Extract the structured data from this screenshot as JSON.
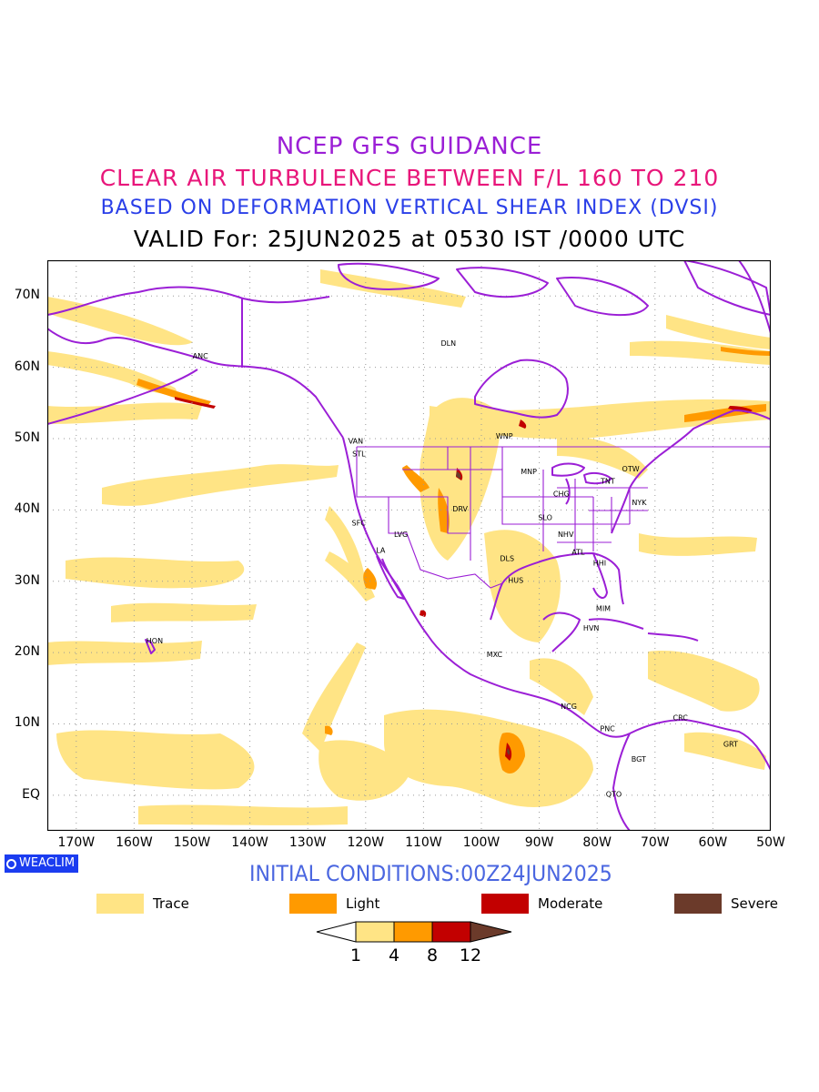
{
  "header": {
    "title": "NCEP GFS GUIDANCE",
    "subtitle": "CLEAR AIR TURBULENCE BETWEEN F/L 160 TO 210",
    "method": "BASED ON DEFORMATION VERTICAL SHEAR INDEX (DVSI)",
    "valid": "VALID For: 25JUN2025 at 0530 IST /0000 UTC"
  },
  "map": {
    "extent": {
      "lon_min": -175,
      "lon_max": -50,
      "lat_min": -5,
      "lat_max": 75
    },
    "x_ticks": [
      "170W",
      "160W",
      "150W",
      "140W",
      "130W",
      "120W",
      "110W",
      "100W",
      "90W",
      "80W",
      "70W",
      "60W",
      "50W"
    ],
    "y_ticks": [
      "70N",
      "60N",
      "50N",
      "40N",
      "30N",
      "20N",
      "10N",
      "EQ"
    ],
    "stations": [
      {
        "code": "ANC",
        "lon": -149.9,
        "lat": 61.2
      },
      {
        "code": "DLN",
        "lon": -107,
        "lat": 63
      },
      {
        "code": "VAN",
        "lon": -123,
        "lat": 49.3
      },
      {
        "code": "STL",
        "lon": -122.3,
        "lat": 47.5
      },
      {
        "code": "WNP",
        "lon": -97.5,
        "lat": 50
      },
      {
        "code": "MNP",
        "lon": -93.2,
        "lat": 45
      },
      {
        "code": "TNT",
        "lon": -79.4,
        "lat": 43.7
      },
      {
        "code": "OTW",
        "lon": -75.7,
        "lat": 45.4
      },
      {
        "code": "CHG",
        "lon": -87.6,
        "lat": 41.9
      },
      {
        "code": "NYK",
        "lon": -74,
        "lat": 40.7
      },
      {
        "code": "DRV",
        "lon": -105,
        "lat": 39.8
      },
      {
        "code": "SFC",
        "lon": -122.4,
        "lat": 37.8
      },
      {
        "code": "LVG",
        "lon": -115.1,
        "lat": 36.2
      },
      {
        "code": "SLO",
        "lon": -90.2,
        "lat": 38.6
      },
      {
        "code": "NHV",
        "lon": -86.8,
        "lat": 36.2
      },
      {
        "code": "LA",
        "lon": -118.2,
        "lat": 34
      },
      {
        "code": "ATL",
        "lon": -84.4,
        "lat": 33.7
      },
      {
        "code": "DLS",
        "lon": -96.8,
        "lat": 32.8
      },
      {
        "code": "HHI",
        "lon": -80.7,
        "lat": 32.2
      },
      {
        "code": "HUS",
        "lon": -95.4,
        "lat": 29.8
      },
      {
        "code": "MIM",
        "lon": -80.2,
        "lat": 25.8
      },
      {
        "code": "HVN",
        "lon": -82.4,
        "lat": 23.1
      },
      {
        "code": "HON",
        "lon": -157.9,
        "lat": 21.3
      },
      {
        "code": "MXC",
        "lon": -99.1,
        "lat": 19.4
      },
      {
        "code": "NCG",
        "lon": -86.3,
        "lat": 12.1
      },
      {
        "code": "CRC",
        "lon": -66.9,
        "lat": 10.5
      },
      {
        "code": "PNC",
        "lon": -79.5,
        "lat": 9
      },
      {
        "code": "GRT",
        "lon": -58.2,
        "lat": 6.8
      },
      {
        "code": "BGT",
        "lon": -74.1,
        "lat": 4.7
      },
      {
        "code": "QTO",
        "lon": -78.5,
        "lat": -0.2
      }
    ]
  },
  "branding": {
    "logo_text": "WEACLIM"
  },
  "footer": {
    "initial_conditions": "INITIAL CONDITIONS:00Z24JUN2025"
  },
  "legend": [
    {
      "label": "Trace",
      "color": "#ffe485"
    },
    {
      "label": "Light",
      "color": "#ff9a00"
    },
    {
      "label": "Moderate",
      "color": "#c20000"
    },
    {
      "label": "Severe",
      "color": "#6b3a2a"
    }
  ],
  "colorbar": {
    "levels": [
      "1",
      "4",
      "8",
      "12"
    ],
    "colors": [
      "#ffffff",
      "#ffe485",
      "#ff9a00",
      "#c20000",
      "#6b3a2a"
    ]
  },
  "colors": {
    "coast": "#9b1fd6",
    "grid": "#9a9a9a"
  }
}
